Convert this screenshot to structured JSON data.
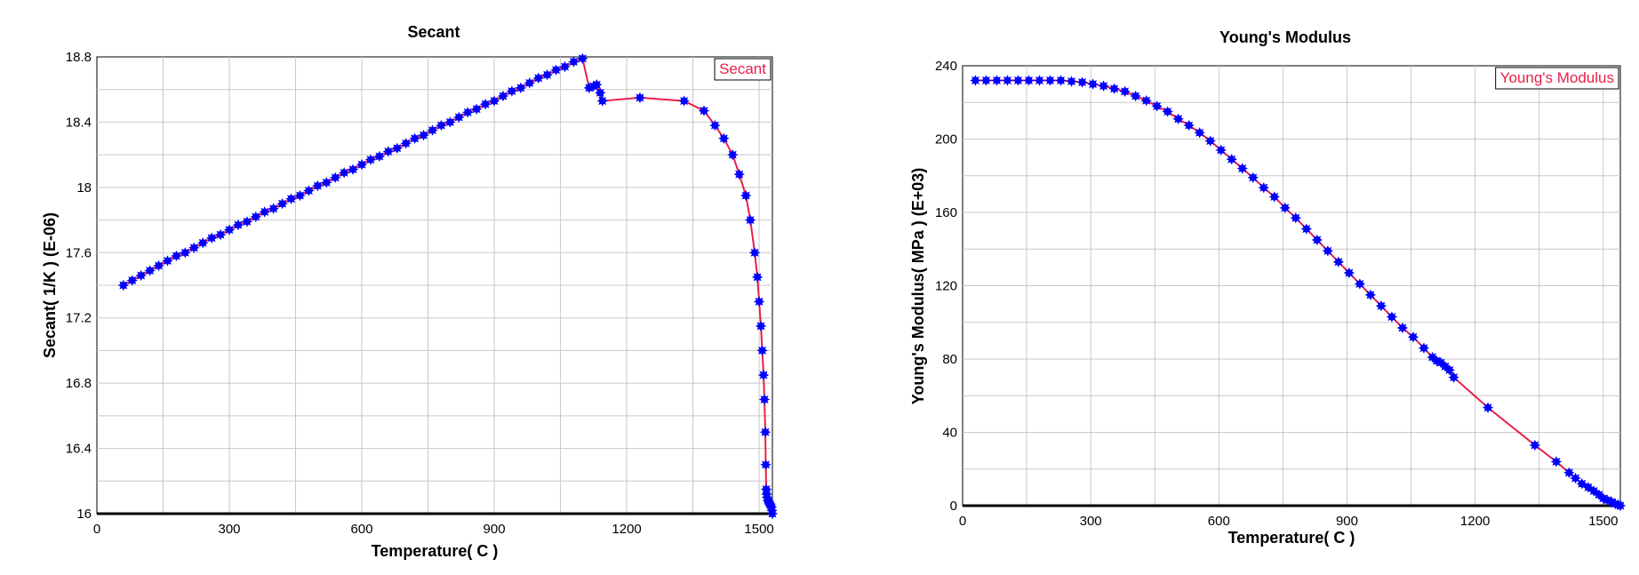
{
  "chart_data": [
    {
      "type": "line",
      "title": "Secant",
      "xlabel": "Temperature( C )",
      "ylabel": "Secant( 1/K ) (E-06)",
      "xlim": [
        0,
        1530
      ],
      "ylim": [
        16,
        18.8
      ],
      "xticks": [
        0,
        300,
        600,
        900,
        1200,
        1500
      ],
      "xtick_labels": [
        "0",
        "300",
        "600",
        "900",
        "1200",
        "1500"
      ],
      "x_minor_step": 150,
      "yticks": [
        16,
        16.4,
        16.8,
        17.2,
        17.6,
        18,
        18.4,
        18.8
      ],
      "ytick_labels": [
        "16",
        "16.4",
        "16.8",
        "17.2",
        "17.6",
        "18",
        "18.4",
        "18.8"
      ],
      "y_minor_step": 0.2,
      "grid": true,
      "legend": {
        "entries": [
          "Secant"
        ],
        "placement": "top-right"
      },
      "series": [
        {
          "name": "Secant",
          "line_color": "#e8204a",
          "marker_color": "#0000ff",
          "points": [
            [
              60,
              17.4
            ],
            [
              80,
              17.43
            ],
            [
              100,
              17.46
            ],
            [
              120,
              17.49
            ],
            [
              140,
              17.52
            ],
            [
              160,
              17.55
            ],
            [
              180,
              17.58
            ],
            [
              200,
              17.6
            ],
            [
              220,
              17.63
            ],
            [
              240,
              17.66
            ],
            [
              260,
              17.69
            ],
            [
              280,
              17.71
            ],
            [
              300,
              17.74
            ],
            [
              320,
              17.77
            ],
            [
              340,
              17.79
            ],
            [
              360,
              17.82
            ],
            [
              380,
              17.85
            ],
            [
              400,
              17.87
            ],
            [
              420,
              17.9
            ],
            [
              440,
              17.93
            ],
            [
              460,
              17.95
            ],
            [
              480,
              17.98
            ],
            [
              500,
              18.01
            ],
            [
              520,
              18.03
            ],
            [
              540,
              18.06
            ],
            [
              560,
              18.09
            ],
            [
              580,
              18.11
            ],
            [
              600,
              18.14
            ],
            [
              620,
              18.17
            ],
            [
              640,
              18.19
            ],
            [
              660,
              18.22
            ],
            [
              680,
              18.24
            ],
            [
              700,
              18.27
            ],
            [
              720,
              18.3
            ],
            [
              740,
              18.32
            ],
            [
              760,
              18.35
            ],
            [
              780,
              18.38
            ],
            [
              800,
              18.4
            ],
            [
              820,
              18.43
            ],
            [
              840,
              18.46
            ],
            [
              860,
              18.48
            ],
            [
              880,
              18.51
            ],
            [
              900,
              18.53
            ],
            [
              920,
              18.56
            ],
            [
              940,
              18.59
            ],
            [
              960,
              18.61
            ],
            [
              980,
              18.64
            ],
            [
              1000,
              18.67
            ],
            [
              1020,
              18.69
            ],
            [
              1040,
              18.72
            ],
            [
              1060,
              18.74
            ],
            [
              1080,
              18.77
            ],
            [
              1100,
              18.79
            ],
            [
              1115,
              18.61
            ],
            [
              1125,
              18.62
            ],
            [
              1132,
              18.63
            ],
            [
              1140,
              18.58
            ],
            [
              1145,
              18.53
            ],
            [
              1230,
              18.55
            ],
            [
              1330,
              18.53
            ],
            [
              1375,
              18.47
            ],
            [
              1400,
              18.38
            ],
            [
              1420,
              18.3
            ],
            [
              1440,
              18.2
            ],
            [
              1455,
              18.08
            ],
            [
              1470,
              17.95
            ],
            [
              1480,
              17.8
            ],
            [
              1490,
              17.6
            ],
            [
              1496,
              17.45
            ],
            [
              1500,
              17.3
            ],
            [
              1504,
              17.15
            ],
            [
              1507,
              17.0
            ],
            [
              1510,
              16.85
            ],
            [
              1512,
              16.7
            ],
            [
              1514,
              16.5
            ],
            [
              1515,
              16.3
            ],
            [
              1516,
              16.15
            ],
            [
              1517,
              16.12
            ],
            [
              1518,
              16.1
            ],
            [
              1520,
              16.08
            ],
            [
              1522,
              16.07
            ],
            [
              1524,
              16.06
            ],
            [
              1526,
              16.05
            ],
            [
              1528,
              16.04
            ],
            [
              1529,
              16.02
            ],
            [
              1530,
              16.0
            ]
          ]
        }
      ]
    },
    {
      "type": "line",
      "title": "Young's Modulus",
      "xlabel": "Temperature( C )",
      "ylabel": "Young's Modulus( MPa ) (E+03)",
      "xlim": [
        0,
        1540
      ],
      "ylim": [
        0,
        240
      ],
      "xticks": [
        0,
        300,
        600,
        900,
        1200,
        1500
      ],
      "xtick_labels": [
        "0",
        "300",
        "600",
        "900",
        "1200",
        "1500"
      ],
      "x_minor_step": 150,
      "yticks": [
        0,
        40,
        80,
        120,
        160,
        200,
        240
      ],
      "ytick_labels": [
        "0",
        "40",
        "80",
        "120",
        "160",
        "200",
        "240"
      ],
      "y_minor_step": 20,
      "grid": true,
      "legend": {
        "entries": [
          "Young's Modulus"
        ],
        "placement": "top-right"
      },
      "series": [
        {
          "name": "Young's Modulus",
          "line_color": "#e8204a",
          "marker_color": "#0000ff",
          "points": [
            [
              30,
              232
            ],
            [
              55,
              232
            ],
            [
              80,
              232
            ],
            [
              105,
              232
            ],
            [
              130,
              232
            ],
            [
              155,
              232
            ],
            [
              180,
              232
            ],
            [
              205,
              232
            ],
            [
              230,
              232
            ],
            [
              255,
              231.5
            ],
            [
              280,
              231
            ],
            [
              305,
              230
            ],
            [
              330,
              229
            ],
            [
              355,
              227.5
            ],
            [
              380,
              226
            ],
            [
              405,
              223.5
            ],
            [
              430,
              221
            ],
            [
              455,
              218
            ],
            [
              480,
              215
            ],
            [
              505,
              211
            ],
            [
              530,
              207.5
            ],
            [
              555,
              203.5
            ],
            [
              580,
              199
            ],
            [
              605,
              194
            ],
            [
              630,
              189
            ],
            [
              655,
              184
            ],
            [
              680,
              179
            ],
            [
              705,
              173.5
            ],
            [
              730,
              168.5
            ],
            [
              755,
              162.5
            ],
            [
              780,
              157
            ],
            [
              805,
              151
            ],
            [
              830,
              145
            ],
            [
              855,
              139
            ],
            [
              880,
              133
            ],
            [
              905,
              127
            ],
            [
              930,
              121
            ],
            [
              955,
              115
            ],
            [
              980,
              109
            ],
            [
              1005,
              103
            ],
            [
              1030,
              97
            ],
            [
              1055,
              92
            ],
            [
              1080,
              86
            ],
            [
              1100,
              81
            ],
            [
              1110,
              79
            ],
            [
              1120,
              78
            ],
            [
              1130,
              76
            ],
            [
              1140,
              74
            ],
            [
              1150,
              70
            ],
            [
              1230,
              53.5
            ],
            [
              1340,
              33
            ],
            [
              1390,
              24
            ],
            [
              1420,
              18
            ],
            [
              1435,
              15
            ],
            [
              1450,
              12
            ],
            [
              1465,
              10
            ],
            [
              1478,
              8
            ],
            [
              1490,
              6
            ],
            [
              1500,
              4
            ],
            [
              1510,
              3
            ],
            [
              1520,
              2
            ],
            [
              1528,
              1
            ],
            [
              1535,
              0.5
            ],
            [
              1540,
              0
            ]
          ]
        }
      ]
    }
  ]
}
